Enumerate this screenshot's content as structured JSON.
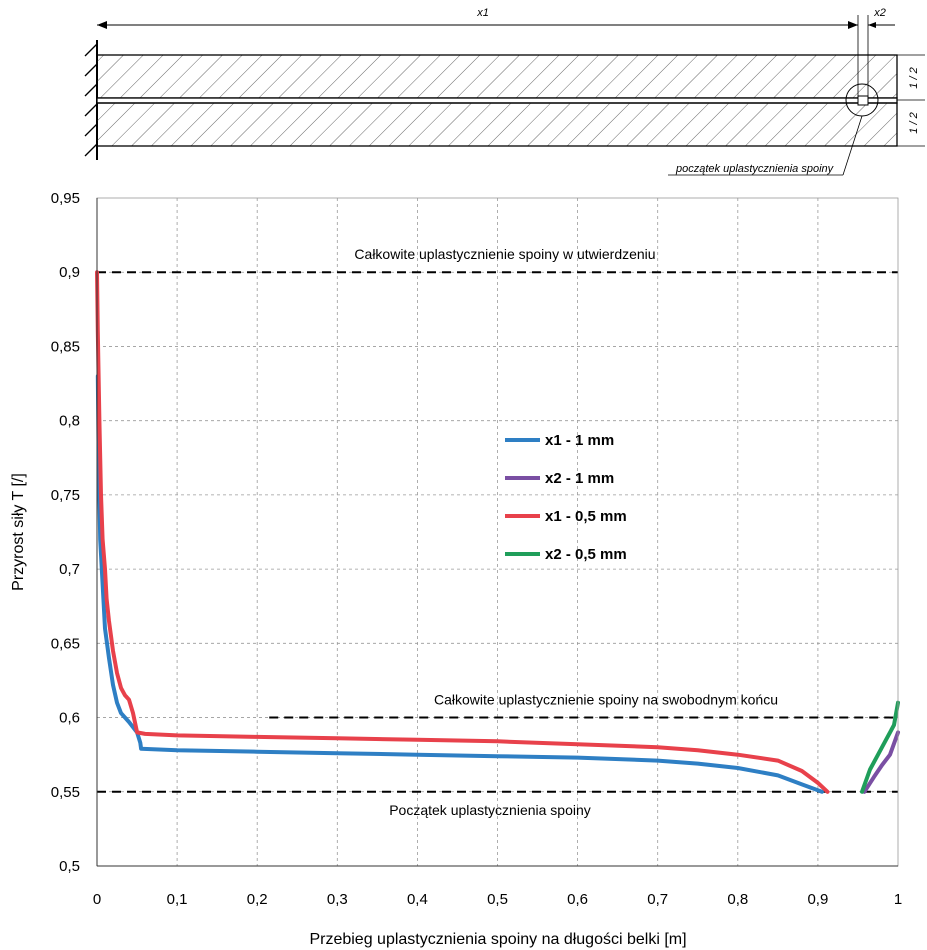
{
  "diagram": {
    "x1_label": "x1",
    "x2_label": "x2",
    "half_top": "1 / 2",
    "half_bottom": "1 / 2",
    "note": "początek uplastycznienia spoiny"
  },
  "chart_data": {
    "type": "line",
    "xlabel": "Przebieg uplastycznienia spoiny na długości belki [m]",
    "ylabel": "Przyrost siły T [/]",
    "xlim": [
      0,
      1
    ],
    "ylim": [
      0.5,
      0.95
    ],
    "x_ticks": [
      {
        "value": 0,
        "label": "0"
      },
      {
        "value": 0.1,
        "label": "0,1"
      },
      {
        "value": 0.2,
        "label": "0,2"
      },
      {
        "value": 0.3,
        "label": "0,3"
      },
      {
        "value": 0.4,
        "label": "0,4"
      },
      {
        "value": 0.5,
        "label": "0,5"
      },
      {
        "value": 0.6,
        "label": "0,6"
      },
      {
        "value": 0.7,
        "label": "0,7"
      },
      {
        "value": 0.8,
        "label": "0,8"
      },
      {
        "value": 0.9,
        "label": "0,9"
      },
      {
        "value": 1,
        "label": "1"
      }
    ],
    "y_ticks": [
      {
        "value": 0.5,
        "label": "0,5"
      },
      {
        "value": 0.55,
        "label": "0,55"
      },
      {
        "value": 0.6,
        "label": "0,6"
      },
      {
        "value": 0.65,
        "label": "0,65"
      },
      {
        "value": 0.7,
        "label": "0,7"
      },
      {
        "value": 0.75,
        "label": "0,75"
      },
      {
        "value": 0.8,
        "label": "0,8"
      },
      {
        "value": 0.85,
        "label": "0,85"
      },
      {
        "value": 0.9,
        "label": "0,9"
      },
      {
        "value": 0.95,
        "label": "0,95"
      }
    ],
    "grid": true,
    "legend_position": "center",
    "reference_lines": [
      {
        "y": 0.9,
        "x_from": 0,
        "x_to": 1,
        "label": "Całkowite uplastycznienie  spoiny w utwierdzeniu"
      },
      {
        "y": 0.6,
        "x_from": 0.215,
        "x_to": 1,
        "label": "Całkowite uplastycznienie  spoiny na swobodnym końcu"
      },
      {
        "y": 0.55,
        "x_from": 0,
        "x_to": 1,
        "label": "Początek uplastycznienia spoiny"
      }
    ],
    "series": [
      {
        "name": "x1 - 1 mm",
        "color": "#2e7fc4",
        "x": [
          0.905,
          0.88,
          0.85,
          0.8,
          0.75,
          0.7,
          0.6,
          0.5,
          0.4,
          0.3,
          0.2,
          0.1,
          0.055,
          0.054,
          0.05,
          0.04,
          0.03,
          0.025,
          0.02,
          0.015,
          0.01,
          0.008,
          0.006,
          0.004,
          0.003,
          0.002,
          0.001
        ],
        "y": [
          0.55,
          0.555,
          0.561,
          0.566,
          0.569,
          0.571,
          0.573,
          0.574,
          0.575,
          0.576,
          0.577,
          0.578,
          0.579,
          0.583,
          0.59,
          0.597,
          0.603,
          0.61,
          0.622,
          0.64,
          0.66,
          0.68,
          0.7,
          0.72,
          0.75,
          0.78,
          0.83
        ]
      },
      {
        "name": "x2 - 1 mm",
        "color": "#7a4fa3",
        "x": [
          0.958,
          0.97,
          0.98,
          0.99,
          1.0
        ],
        "y": [
          0.55,
          0.56,
          0.568,
          0.575,
          0.59
        ]
      },
      {
        "name": "x1 - 0,5 mm",
        "color": "#e8414b",
        "x": [
          0.912,
          0.9,
          0.88,
          0.85,
          0.8,
          0.75,
          0.7,
          0.6,
          0.5,
          0.4,
          0.3,
          0.2,
          0.1,
          0.06,
          0.05,
          0.045,
          0.04,
          0.035,
          0.03,
          0.025,
          0.02,
          0.015,
          0.012,
          0.01,
          0.007,
          0.005,
          0.003,
          0.001,
          0.0
        ],
        "y": [
          0.55,
          0.556,
          0.564,
          0.571,
          0.575,
          0.578,
          0.58,
          0.582,
          0.584,
          0.585,
          0.586,
          0.587,
          0.588,
          0.589,
          0.59,
          0.603,
          0.612,
          0.615,
          0.62,
          0.63,
          0.645,
          0.665,
          0.68,
          0.7,
          0.72,
          0.75,
          0.8,
          0.86,
          0.9
        ]
      },
      {
        "name": "x2 - 0,5 mm",
        "color": "#1f9e5a",
        "x": [
          0.955,
          0.965,
          0.975,
          0.985,
          0.995,
          1.0
        ],
        "y": [
          0.55,
          0.565,
          0.575,
          0.585,
          0.595,
          0.61
        ]
      }
    ]
  }
}
